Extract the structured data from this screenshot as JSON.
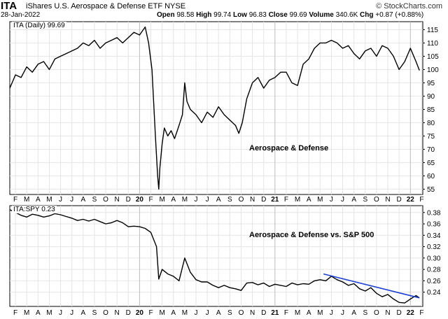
{
  "header": {
    "symbol": "ITA",
    "name": "iShares U.S. Aerospace & Defense ETF NYSE",
    "date": "28-Jan-2022",
    "brand": "© StockCharts.com",
    "quote": {
      "open_label": "Open",
      "open": "98.58",
      "high_label": "High",
      "high": "99.74",
      "low_label": "Low",
      "low": "96.83",
      "close_label": "Close",
      "close": "99.69",
      "volume_label": "Volume",
      "volume": "340.6K",
      "chg_label": "Chg",
      "chg": "+0.87 (+0.88%)"
    }
  },
  "panel1": {
    "legend": "ITA (Daily) 99.69",
    "annotation": "Aerospace & Defense"
  },
  "panel2": {
    "legend": "ITA:SPY 0.23",
    "annotation": "Aerospace & Defense vs. S&P 500"
  },
  "chart_data": [
    {
      "type": "line",
      "title": "ITA (Daily) 99.69",
      "x_ticks": [
        "F",
        "M",
        "A",
        "M",
        "J",
        "J",
        "A",
        "S",
        "O",
        "N",
        "D",
        "20",
        "F",
        "M",
        "A",
        "M",
        "J",
        "J",
        "A",
        "S",
        "O",
        "N",
        "D",
        "21",
        "F",
        "M",
        "A",
        "M",
        "J",
        "J",
        "A",
        "S",
        "O",
        "N",
        "D",
        "22",
        "F"
      ],
      "y_ticks": [
        55,
        60,
        65,
        70,
        75,
        80,
        85,
        90,
        95,
        100,
        105,
        110,
        115
      ],
      "ylim": [
        53,
        118
      ],
      "xlim": [
        0,
        36.6
      ],
      "grid": true,
      "series": [
        {
          "x": [
            0,
            0.5,
            1,
            1.5,
            2,
            2.5,
            3,
            3.5,
            4,
            4.5,
            5,
            5.5,
            6,
            6.5,
            7,
            7.5,
            8,
            8.5,
            9,
            9.5,
            10,
            10.5,
            11,
            11.5,
            12,
            12.3,
            12.6,
            12.9,
            13.1,
            13.2,
            13.3,
            13.5,
            13.7,
            14,
            14.3,
            14.6,
            15,
            15.3,
            15.5,
            15.7,
            16,
            16.5,
            17,
            17.5,
            18,
            18.5,
            19,
            19.5,
            20,
            20.3,
            20.6,
            21,
            21.5,
            22,
            22.5,
            23,
            23.5,
            24,
            24.5,
            25,
            25.5,
            26,
            26.5,
            27,
            27.5,
            28,
            28.5,
            29,
            29.5,
            30,
            30.5,
            31,
            31.5,
            32,
            32.5,
            33,
            33.5,
            34,
            34.5,
            35,
            35.5,
            36,
            36.3
          ],
          "y": [
            93,
            98,
            97,
            101,
            99,
            102,
            103,
            100,
            104,
            105,
            106,
            107,
            108,
            110,
            109,
            111,
            108,
            110,
            111,
            112,
            110,
            112,
            114,
            113,
            116,
            110,
            100,
            75,
            60,
            55,
            63,
            72,
            78,
            75,
            77,
            74,
            79,
            83,
            95,
            88,
            85,
            83,
            80,
            84,
            82,
            86,
            83,
            81,
            79,
            76,
            80,
            89,
            95,
            97,
            93,
            96,
            97,
            99,
            99,
            95,
            94,
            102,
            104,
            108,
            110,
            110,
            111,
            110,
            108,
            109,
            106,
            104,
            107,
            108,
            105,
            109,
            108,
            105,
            100,
            103,
            108,
            103,
            99.69
          ]
        }
      ]
    },
    {
      "type": "line",
      "title": "ITA:SPY 0.23",
      "x_ticks": [
        "F",
        "M",
        "A",
        "M",
        "J",
        "J",
        "A",
        "S",
        "O",
        "N",
        "D",
        "20",
        "F",
        "M",
        "A",
        "M",
        "J",
        "J",
        "A",
        "S",
        "O",
        "N",
        "D",
        "21",
        "F",
        "M",
        "A",
        "M",
        "J",
        "J",
        "A",
        "S",
        "O",
        "N",
        "D",
        "22",
        "F"
      ],
      "y_ticks": [
        0.24,
        0.26,
        0.28,
        0.3,
        0.32,
        0.34,
        0.36,
        0.38
      ],
      "ylim": [
        0.215,
        0.392
      ],
      "xlim": [
        0,
        36.6
      ],
      "grid": true,
      "series": [
        {
          "x": [
            0,
            0.5,
            1,
            1.5,
            2,
            2.5,
            3,
            3.5,
            4,
            4.5,
            5,
            5.5,
            6,
            6.5,
            7,
            7.5,
            8,
            8.5,
            9,
            9.5,
            10,
            10.5,
            11,
            11.5,
            12,
            12.5,
            13,
            13.2,
            13.5,
            14,
            14.5,
            15,
            15.5,
            16,
            16.5,
            17,
            17.5,
            18,
            18.5,
            19,
            19.5,
            20,
            20.5,
            21,
            21.5,
            22,
            22.5,
            23,
            23.5,
            24,
            24.5,
            25,
            25.5,
            26,
            26.5,
            27,
            27.5,
            28,
            28.5,
            29,
            29.5,
            30,
            30.5,
            31,
            31.5,
            32,
            32.5,
            33,
            33.5,
            34,
            34.5,
            35,
            35.5,
            36,
            36.3
          ],
          "y": [
            0.385,
            0.38,
            0.375,
            0.372,
            0.377,
            0.375,
            0.372,
            0.374,
            0.378,
            0.376,
            0.373,
            0.37,
            0.366,
            0.368,
            0.365,
            0.368,
            0.364,
            0.36,
            0.362,
            0.366,
            0.362,
            0.355,
            0.356,
            0.355,
            0.352,
            0.345,
            0.32,
            0.263,
            0.28,
            0.272,
            0.268,
            0.26,
            0.3,
            0.275,
            0.262,
            0.258,
            0.258,
            0.252,
            0.248,
            0.252,
            0.248,
            0.246,
            0.243,
            0.256,
            0.257,
            0.253,
            0.256,
            0.25,
            0.254,
            0.252,
            0.25,
            0.256,
            0.253,
            0.255,
            0.254,
            0.26,
            0.262,
            0.26,
            0.268,
            0.262,
            0.258,
            0.252,
            0.255,
            0.246,
            0.242,
            0.248,
            0.238,
            0.232,
            0.236,
            0.228,
            0.222,
            0.221,
            0.228,
            0.234,
            0.23
          ]
        }
      ],
      "annotations": [
        {
          "type": "trendline",
          "x": [
            27.8,
            36.3
          ],
          "y": [
            0.272,
            0.23
          ],
          "color": "#1f3fd0"
        }
      ]
    }
  ],
  "colors": {
    "price_line": "#000000",
    "trendline": "#1f3fd0",
    "grid": "#e4e4e4"
  }
}
